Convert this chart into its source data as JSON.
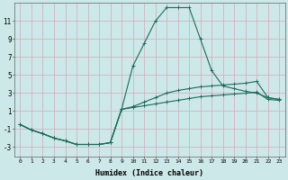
{
  "xlabel": "Humidex (Indice chaleur)",
  "xlim": [
    -0.5,
    23.5
  ],
  "ylim": [
    -4.0,
    13.0
  ],
  "yticks": [
    -3,
    -1,
    1,
    3,
    5,
    7,
    9,
    11
  ],
  "xticks": [
    0,
    1,
    2,
    3,
    4,
    5,
    6,
    7,
    8,
    9,
    10,
    11,
    12,
    13,
    14,
    15,
    16,
    17,
    18,
    19,
    20,
    21,
    22,
    23
  ],
  "bg_color": "#cde8e8",
  "grid_color": "#d4a8b8",
  "line_color": "#1a6b5a",
  "line1_x": [
    0,
    1,
    2,
    3,
    4,
    5,
    6,
    7,
    8,
    9,
    10,
    11,
    12,
    13,
    14,
    15,
    16,
    17,
    18,
    19,
    20,
    21,
    22,
    23
  ],
  "line1_y": [
    -0.5,
    -1.1,
    -1.5,
    -2.0,
    -2.3,
    -2.7,
    -2.7,
    -2.7,
    -2.5,
    1.2,
    6.0,
    8.5,
    11.0,
    12.5,
    12.5,
    12.5,
    9.0,
    5.5,
    3.8,
    3.5,
    3.2,
    3.0,
    2.5,
    2.3
  ],
  "line2_x": [
    0,
    1,
    2,
    3,
    4,
    5,
    6,
    7,
    8,
    9,
    10,
    11,
    12,
    13,
    14,
    15,
    16,
    17,
    18,
    19,
    20,
    21,
    22,
    23
  ],
  "line2_y": [
    -0.5,
    -1.1,
    -1.5,
    -2.0,
    -2.3,
    -2.7,
    -2.7,
    -2.7,
    -2.5,
    1.2,
    1.5,
    2.0,
    2.5,
    3.0,
    3.3,
    3.5,
    3.7,
    3.8,
    3.9,
    4.0,
    4.1,
    4.3,
    2.5,
    2.3
  ],
  "line3_x": [
    0,
    1,
    2,
    3,
    4,
    5,
    6,
    7,
    8,
    9,
    10,
    11,
    12,
    13,
    14,
    15,
    16,
    17,
    18,
    19,
    20,
    21,
    22,
    23
  ],
  "line3_y": [
    -0.5,
    -1.1,
    -1.5,
    -2.0,
    -2.3,
    -2.7,
    -2.7,
    -2.7,
    -2.5,
    1.2,
    1.4,
    1.6,
    1.8,
    2.0,
    2.2,
    2.4,
    2.6,
    2.7,
    2.8,
    2.9,
    3.0,
    3.1,
    2.3,
    2.2
  ]
}
